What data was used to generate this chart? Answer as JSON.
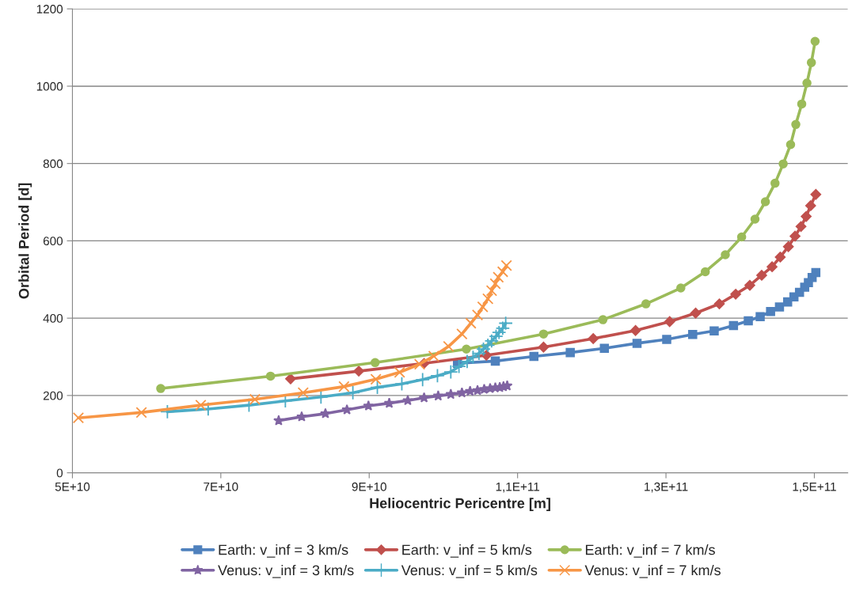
{
  "chart_data": {
    "type": "line",
    "xlabel": "Heliocentric Pericentre [m]",
    "ylabel": "Orbital Period [d]",
    "xlim": [
      50000000000.0,
      154500000000.0
    ],
    "xticks": [
      {
        "value": 50000000000.0,
        "label": "5E+10"
      },
      {
        "value": 70000000000.0,
        "label": "7E+10"
      },
      {
        "value": 90000000000.0,
        "label": "9E+10"
      },
      {
        "value": 110000000000.0,
        "label": "1,1E+11"
      },
      {
        "value": 130000000000.0,
        "label": "1,3E+11"
      },
      {
        "value": 150000000000.0,
        "label": "1,5E+11"
      }
    ],
    "ylim": [
      0,
      1200
    ],
    "yticks": [
      0,
      200,
      400,
      600,
      800,
      1000,
      1200
    ],
    "grid": "y",
    "legend": "bottom",
    "line_style": "solid",
    "series": [
      {
        "name": "Earth: v_inf = 3 km/s",
        "color": "#4f81bd",
        "marker": "square",
        "x": [
          101900000000.0,
          107000000000.0,
          112200000000.0,
          117100000000.0,
          121700000000.0,
          126100000000.0,
          130100000000.0,
          133600000000.0,
          136500000000.0,
          139100000000.0,
          141100000000.0,
          142700000000.0,
          144100000000.0,
          145300000000.0,
          146400000000.0,
          147250000000.0,
          148000000000.0,
          148700000000.0,
          149200000000.0,
          149700000000.0,
          150200000000.0
        ],
        "values": [
          283,
          289,
          301,
          311,
          322,
          335,
          345,
          358,
          367,
          381,
          393,
          404,
          417,
          429,
          442,
          455,
          467,
          480,
          492,
          505,
          518
        ]
      },
      {
        "name": "Earth: v_inf = 5 km/s",
        "color": "#c0504d",
        "marker": "diamond",
        "x": [
          79400000000.0,
          88600000000.0,
          97400000000.0,
          105800000000.0,
          113500000000.0,
          120200000000.0,
          125900000000.0,
          130500000000.0,
          134000000000.0,
          137200000000.0,
          139400000000.0,
          141300000000.0,
          142900000000.0,
          144300000000.0,
          145400000000.0,
          146500000000.0,
          147400000000.0,
          148200000000.0,
          148900000000.0,
          149500000000.0,
          150200000000.0
        ],
        "values": [
          243,
          263,
          283,
          304,
          325,
          347,
          368,
          391,
          413,
          437,
          462,
          485,
          511,
          533,
          558,
          585,
          612,
          637,
          663,
          691,
          720
        ]
      },
      {
        "name": "Earth: v_inf = 7 km/s",
        "color": "#9bbb59",
        "marker": "circle",
        "x": [
          61900000000.0,
          76700000000.0,
          90800000000.0,
          103100000000.0,
          113500000000.0,
          121500000000.0,
          127300000000.0,
          132000000000.0,
          135300000000.0,
          138000000000.0,
          140200000000.0,
          142000000000.0,
          143400000000.0,
          144700000000.0,
          145800000000.0,
          146800000000.0,
          147500000000.0,
          148300000000.0,
          149000000000.0,
          149600000000.0,
          150100000000.0
        ],
        "values": [
          218,
          250,
          285,
          320,
          359,
          396,
          437,
          478,
          520,
          564,
          610,
          656,
          701,
          749,
          799,
          849,
          901,
          954,
          1008,
          1061,
          1116
        ]
      },
      {
        "name": "Venus: v_inf = 3 km/s",
        "color": "#8064a2",
        "marker": "star",
        "x": [
          77800000000.0,
          80900000000.0,
          84100000000.0,
          87000000000.0,
          89900000000.0,
          92700000000.0,
          95200000000.0,
          97400000000.0,
          99300000000.0,
          101000000000.0,
          102500000000.0,
          103600000000.0,
          104600000000.0,
          105500000000.0,
          106300000000.0,
          107000000000.0,
          107600000000.0,
          108100000000.0,
          108600000000.0
        ],
        "values": [
          135,
          145,
          153,
          163,
          173,
          180,
          187,
          194,
          199,
          203,
          207,
          211,
          213,
          216,
          218,
          220,
          221,
          223,
          225
        ]
      },
      {
        "name": "Venus: v_inf = 5 km/s",
        "color": "#4bacc6",
        "marker": "plus",
        "x": [
          62800000000.0,
          68300000000.0,
          73800000000.0,
          78700000000.0,
          83500000000.0,
          87800000000.0,
          91100000000.0,
          94400000000.0,
          97200000000.0,
          99200000000.0,
          101000000000.0,
          102100000000.0,
          103200000000.0,
          104000000000.0,
          104800000000.0,
          105400000000.0,
          106000000000.0,
          106500000000.0,
          107100000000.0,
          107500000000.0,
          108000000000.0,
          108400000000.0
        ],
        "values": [
          158,
          165,
          175,
          186,
          196,
          207,
          221,
          230,
          241,
          251,
          261,
          275,
          288,
          299,
          309,
          320,
          330,
          341,
          353,
          363,
          374,
          387
        ]
      },
      {
        "name": "Venus: v_inf = 7 km/s",
        "color": "#f79646",
        "marker": "cross",
        "x": [
          50800000000.0,
          59300000000.0,
          67300000000.0,
          74600000000.0,
          81100000000.0,
          86600000000.0,
          90900000000.0,
          94100000000.0,
          96800000000.0,
          98700000000.0,
          100700000000.0,
          102500000000.0,
          103700000000.0,
          104600000000.0,
          105300000000.0,
          106000000000.0,
          106500000000.0,
          107000000000.0,
          107400000000.0,
          108000000000.0,
          108500000000.0
        ],
        "values": [
          142,
          156,
          175,
          190,
          207,
          223,
          242,
          260,
          281,
          302,
          327,
          359,
          387,
          408,
          429,
          450,
          471,
          489,
          506,
          520,
          536
        ]
      }
    ]
  }
}
